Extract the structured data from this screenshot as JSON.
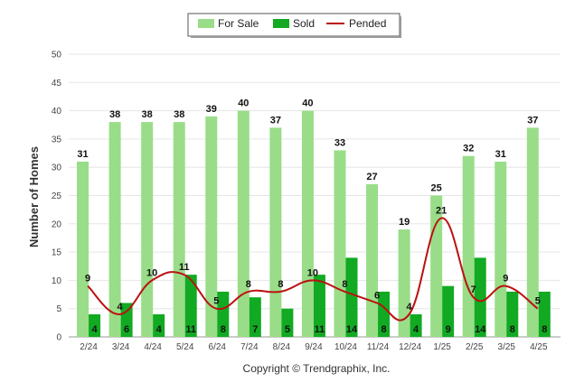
{
  "chart_data": {
    "type": "bar",
    "categories": [
      "2/24",
      "3/24",
      "4/24",
      "5/24",
      "6/24",
      "7/24",
      "8/24",
      "9/24",
      "10/24",
      "11/24",
      "12/24",
      "1/25",
      "2/25",
      "3/25",
      "4/25"
    ],
    "series": [
      {
        "name": "For Sale",
        "type": "bar",
        "color": "#99dd88",
        "values": [
          31,
          38,
          38,
          38,
          39,
          40,
          37,
          40,
          33,
          27,
          19,
          25,
          32,
          31,
          37
        ]
      },
      {
        "name": "Sold",
        "type": "bar",
        "color": "#11aa22",
        "values": [
          4,
          6,
          4,
          11,
          8,
          7,
          5,
          11,
          14,
          8,
          4,
          9,
          14,
          8,
          8
        ]
      },
      {
        "name": "Pended",
        "type": "line",
        "color": "#bb1111",
        "values": [
          9,
          4,
          10,
          11,
          5,
          8,
          8,
          10,
          8,
          6,
          4,
          21,
          7,
          9,
          5
        ]
      }
    ],
    "ylabel": "Number of Homes",
    "ylim": [
      0,
      50
    ],
    "yticks": [
      0,
      5,
      10,
      15,
      20,
      25,
      30,
      35,
      40,
      45,
      50
    ],
    "grid": true,
    "legend_position": "top-center",
    "footer": "Copyright © Trendgraphix, Inc."
  }
}
